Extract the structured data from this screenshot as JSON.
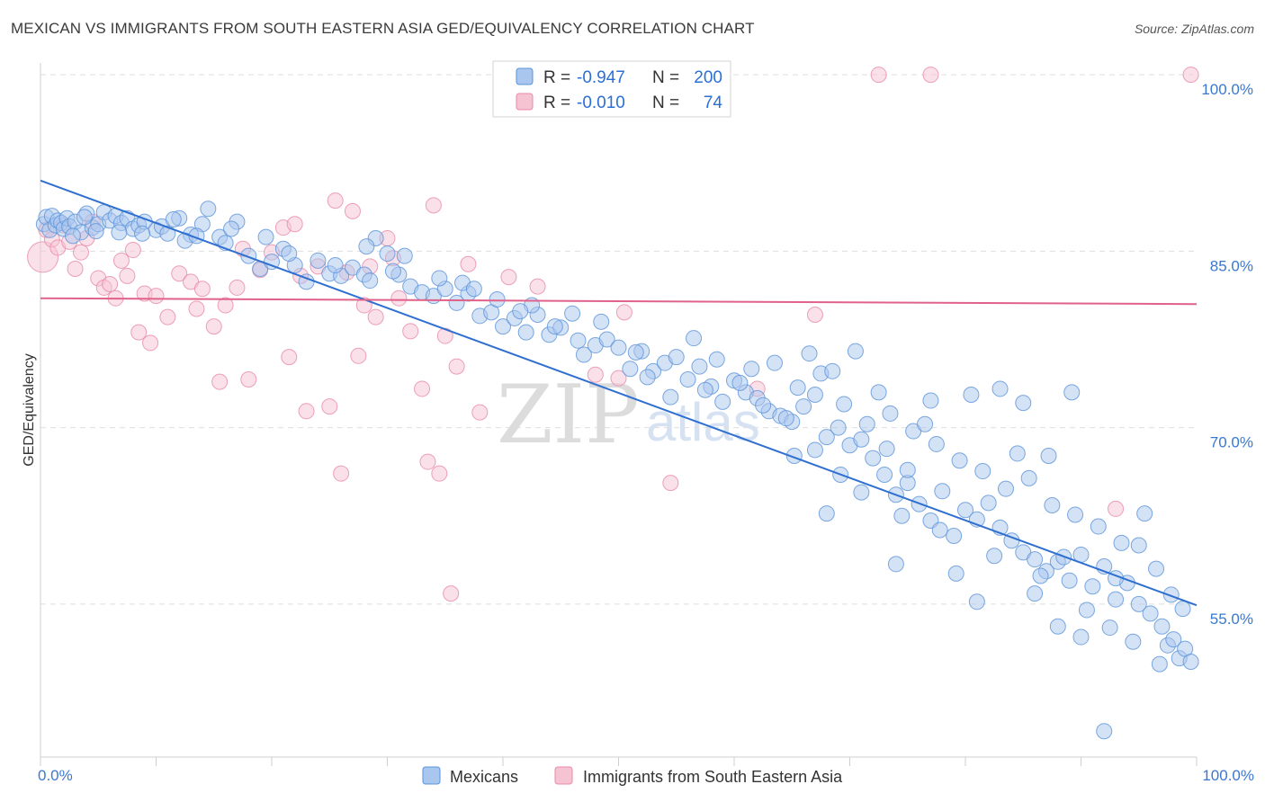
{
  "title": "MEXICAN VS IMMIGRANTS FROM SOUTH EASTERN ASIA GED/EQUIVALENCY CORRELATION CHART",
  "source": "Source: ZipAtlas.com",
  "watermark": {
    "zip": "ZIP",
    "atlas": "atlas"
  },
  "colors": {
    "blue": "#5b93d9",
    "blue_fill": "#a9c6ee",
    "blue_line": "#2f6fd0",
    "pink": "#e88aa8",
    "pink_fill": "#f6c3d3",
    "pink_line": "#e0628a",
    "tick_text": "#3a78d0",
    "grid": "#dedede"
  },
  "legend": {
    "rows": [
      {
        "r_label": "R =",
        "r_value": "-0.947",
        "n_label": "N =",
        "n_value": "200"
      },
      {
        "r_label": "R =",
        "r_value": "-0.010",
        "n_label": "N =",
        "n_value": "74"
      }
    ]
  },
  "chart_data": {
    "type": "scatter",
    "xlabel": "",
    "ylabel": "GED/Equivalency",
    "xlim": [
      0,
      100
    ],
    "ylim": [
      42,
      101
    ],
    "x_tick_labels": [
      "0.0%",
      "100.0%"
    ],
    "y_ticks": [
      {
        "value": 100,
        "label": "100.0%"
      },
      {
        "value": 85,
        "label": "85.0%"
      },
      {
        "value": 70,
        "label": "70.0%"
      },
      {
        "value": 55,
        "label": "55.0%"
      }
    ],
    "grid": "horizontal dashed",
    "legend_position": "top-center",
    "series": [
      {
        "name": "Mexicans",
        "trend": {
          "x": [
            0,
            100
          ],
          "y": [
            91.0,
            54.9
          ]
        },
        "points": [
          [
            0.3,
            87.3
          ],
          [
            0.5,
            87.9
          ],
          [
            0.8,
            86.8
          ],
          [
            1.0,
            88.0
          ],
          [
            1.3,
            87.2
          ],
          [
            1.5,
            87.6
          ],
          [
            1.8,
            87.4
          ],
          [
            2.0,
            86.9
          ],
          [
            2.3,
            87.8
          ],
          [
            2.5,
            87.1
          ],
          [
            3.0,
            87.5
          ],
          [
            3.5,
            86.6
          ],
          [
            4.0,
            88.2
          ],
          [
            4.5,
            87.0
          ],
          [
            5.0,
            87.3
          ],
          [
            5.5,
            88.3
          ],
          [
            6.0,
            87.6
          ],
          [
            6.5,
            88.0
          ],
          [
            7.0,
            87.4
          ],
          [
            7.5,
            87.8
          ],
          [
            8.0,
            86.9
          ],
          [
            8.5,
            87.2
          ],
          [
            9.0,
            87.5
          ],
          [
            10.0,
            86.8
          ],
          [
            10.5,
            87.1
          ],
          [
            11.0,
            86.5
          ],
          [
            12.0,
            87.8
          ],
          [
            13.0,
            86.4
          ],
          [
            14.0,
            87.3
          ],
          [
            15.5,
            86.2
          ],
          [
            17.0,
            87.5
          ],
          [
            14.5,
            88.6
          ],
          [
            12.5,
            85.9
          ],
          [
            16.0,
            85.7
          ],
          [
            18.0,
            84.6
          ],
          [
            19.0,
            83.5
          ],
          [
            20.0,
            84.1
          ],
          [
            21.0,
            85.2
          ],
          [
            22.0,
            83.8
          ],
          [
            23.0,
            82.4
          ],
          [
            24.0,
            84.2
          ],
          [
            25.0,
            83.1
          ],
          [
            26.0,
            82.9
          ],
          [
            27.0,
            83.6
          ],
          [
            28.0,
            83.0
          ],
          [
            28.5,
            82.5
          ],
          [
            29.0,
            86.1
          ],
          [
            30.0,
            84.8
          ],
          [
            31.0,
            83.0
          ],
          [
            32.0,
            82.0
          ],
          [
            33.0,
            81.5
          ],
          [
            34.0,
            81.2
          ],
          [
            35.0,
            81.8
          ],
          [
            36.0,
            80.6
          ],
          [
            37.0,
            81.4
          ],
          [
            38.0,
            79.5
          ],
          [
            39.0,
            79.8
          ],
          [
            40.0,
            78.6
          ],
          [
            41.0,
            79.3
          ],
          [
            42.0,
            78.1
          ],
          [
            43.0,
            79.6
          ],
          [
            44.0,
            77.9
          ],
          [
            45.0,
            78.5
          ],
          [
            46.0,
            79.7
          ],
          [
            47.0,
            76.2
          ],
          [
            48.0,
            77.0
          ],
          [
            49.0,
            77.5
          ],
          [
            50.0,
            76.8
          ],
          [
            51.0,
            75.0
          ],
          [
            52.0,
            76.5
          ],
          [
            53.0,
            74.8
          ],
          [
            54.0,
            75.5
          ],
          [
            55.0,
            76.0
          ],
          [
            56.0,
            74.1
          ],
          [
            57.0,
            75.2
          ],
          [
            58.0,
            73.5
          ],
          [
            59.0,
            72.2
          ],
          [
            60.0,
            74.0
          ],
          [
            61.0,
            73.0
          ],
          [
            62.0,
            72.5
          ],
          [
            63.0,
            71.4
          ],
          [
            64.0,
            71.0
          ],
          [
            65.0,
            70.5
          ],
          [
            66.0,
            71.8
          ],
          [
            67.0,
            72.8
          ],
          [
            68.0,
            69.2
          ],
          [
            69.0,
            70.0
          ],
          [
            70.0,
            68.5
          ],
          [
            71.0,
            69.0
          ],
          [
            72.0,
            67.4
          ],
          [
            73.0,
            66.0
          ],
          [
            74.0,
            64.3
          ],
          [
            75.0,
            65.3
          ],
          [
            76.0,
            63.5
          ],
          [
            77.0,
            62.1
          ],
          [
            78.0,
            64.6
          ],
          [
            79.0,
            60.8
          ],
          [
            80.0,
            63.0
          ],
          [
            81.0,
            62.2
          ],
          [
            82.0,
            63.6
          ],
          [
            83.0,
            61.5
          ],
          [
            84.0,
            60.4
          ],
          [
            85.0,
            59.4
          ],
          [
            86.0,
            58.8
          ],
          [
            87.0,
            57.8
          ],
          [
            88.0,
            58.6
          ],
          [
            89.0,
            57.0
          ],
          [
            90.0,
            59.2
          ],
          [
            91.0,
            56.5
          ],
          [
            92.0,
            58.2
          ],
          [
            93.0,
            55.4
          ],
          [
            94.0,
            56.8
          ],
          [
            95.0,
            55.0
          ],
          [
            96.0,
            54.2
          ],
          [
            97.0,
            53.1
          ],
          [
            97.5,
            51.5
          ],
          [
            98.0,
            52.0
          ],
          [
            98.5,
            50.4
          ],
          [
            99.0,
            51.2
          ],
          [
            99.5,
            50.1
          ],
          [
            63.5,
            75.5
          ],
          [
            66.5,
            76.3
          ],
          [
            56.5,
            77.6
          ],
          [
            48.5,
            79.0
          ],
          [
            42.5,
            80.4
          ],
          [
            36.5,
            82.3
          ],
          [
            30.5,
            83.3
          ],
          [
            25.5,
            83.8
          ],
          [
            21.5,
            84.8
          ],
          [
            8.8,
            86.5
          ],
          [
            52.5,
            74.3
          ],
          [
            58.5,
            75.8
          ],
          [
            61.5,
            75.0
          ],
          [
            65.5,
            73.4
          ],
          [
            67.5,
            74.6
          ],
          [
            69.5,
            72.0
          ],
          [
            71.5,
            70.3
          ],
          [
            73.5,
            71.2
          ],
          [
            75.5,
            69.7
          ],
          [
            77.5,
            68.6
          ],
          [
            79.5,
            67.2
          ],
          [
            81.5,
            66.3
          ],
          [
            83.5,
            64.8
          ],
          [
            85.5,
            65.7
          ],
          [
            87.5,
            63.4
          ],
          [
            89.5,
            62.6
          ],
          [
            91.5,
            61.6
          ],
          [
            93.5,
            60.2
          ],
          [
            95.5,
            62.7
          ],
          [
            96.5,
            58.0
          ],
          [
            97.8,
            55.8
          ],
          [
            98.8,
            54.6
          ],
          [
            84.5,
            67.8
          ],
          [
            80.5,
            72.8
          ],
          [
            76.5,
            70.3
          ],
          [
            72.5,
            73.0
          ],
          [
            70.5,
            76.5
          ],
          [
            68.5,
            74.8
          ],
          [
            64.5,
            70.8
          ],
          [
            62.5,
            71.9
          ],
          [
            60.5,
            73.8
          ],
          [
            57.5,
            73.2
          ],
          [
            54.5,
            72.6
          ],
          [
            51.5,
            76.4
          ],
          [
            46.5,
            77.4
          ],
          [
            44.5,
            78.6
          ],
          [
            41.5,
            79.9
          ],
          [
            39.5,
            80.9
          ],
          [
            37.5,
            81.8
          ],
          [
            34.5,
            82.7
          ],
          [
            31.5,
            84.6
          ],
          [
            28.2,
            85.4
          ],
          [
            19.5,
            86.2
          ],
          [
            16.5,
            86.9
          ],
          [
            13.5,
            86.3
          ],
          [
            11.5,
            87.7
          ],
          [
            6.8,
            86.6
          ],
          [
            4.8,
            86.7
          ],
          [
            3.8,
            87.9
          ],
          [
            2.8,
            86.3
          ],
          [
            74.5,
            62.5
          ],
          [
            77.8,
            61.3
          ],
          [
            82.5,
            59.1
          ],
          [
            86.5,
            57.4
          ],
          [
            88.5,
            59.0
          ],
          [
            90.5,
            54.5
          ],
          [
            92.5,
            53.0
          ],
          [
            94.5,
            51.8
          ],
          [
            96.8,
            49.9
          ],
          [
            92.0,
            44.2
          ],
          [
            87.2,
            67.6
          ],
          [
            89.2,
            73.0
          ],
          [
            83.0,
            73.3
          ],
          [
            85.0,
            72.1
          ],
          [
            77.0,
            72.3
          ],
          [
            73.2,
            68.2
          ],
          [
            75.0,
            66.4
          ],
          [
            69.2,
            66.0
          ],
          [
            67.0,
            68.1
          ],
          [
            65.2,
            67.6
          ],
          [
            71.0,
            64.5
          ],
          [
            68.0,
            62.7
          ],
          [
            74.0,
            58.4
          ],
          [
            79.2,
            57.6
          ],
          [
            81.0,
            55.2
          ],
          [
            86.0,
            55.9
          ],
          [
            88.0,
            53.1
          ],
          [
            90.0,
            52.2
          ],
          [
            93.0,
            57.2
          ],
          [
            95.0,
            60.0
          ]
        ]
      },
      {
        "name": "Immigrants from South Eastern Asia",
        "trend": {
          "x": [
            0,
            100
          ],
          "y": [
            81.0,
            80.5
          ]
        },
        "points": [
          [
            0.2,
            84.5
          ],
          [
            0.5,
            86.8
          ],
          [
            1.0,
            86.0
          ],
          [
            1.5,
            85.3
          ],
          [
            2.0,
            87.2
          ],
          [
            2.5,
            85.8
          ],
          [
            3.0,
            83.5
          ],
          [
            3.5,
            84.9
          ],
          [
            4.0,
            86.1
          ],
          [
            4.5,
            87.5
          ],
          [
            5.0,
            82.7
          ],
          [
            5.5,
            81.9
          ],
          [
            6.0,
            82.2
          ],
          [
            6.5,
            81.0
          ],
          [
            7.0,
            84.2
          ],
          [
            7.5,
            82.9
          ],
          [
            8.0,
            85.1
          ],
          [
            8.5,
            78.1
          ],
          [
            9.0,
            81.4
          ],
          [
            9.5,
            77.2
          ],
          [
            10.0,
            81.2
          ],
          [
            11.0,
            79.4
          ],
          [
            12.0,
            83.1
          ],
          [
            13.0,
            82.4
          ],
          [
            13.5,
            80.1
          ],
          [
            14.0,
            81.8
          ],
          [
            15.0,
            78.6
          ],
          [
            15.5,
            73.9
          ],
          [
            16.0,
            80.4
          ],
          [
            17.0,
            81.9
          ],
          [
            17.5,
            85.2
          ],
          [
            18.0,
            74.1
          ],
          [
            19.0,
            83.4
          ],
          [
            20.0,
            84.9
          ],
          [
            21.0,
            87.0
          ],
          [
            21.5,
            76.0
          ],
          [
            22.0,
            87.3
          ],
          [
            22.5,
            82.9
          ],
          [
            23.0,
            71.4
          ],
          [
            24.0,
            83.7
          ],
          [
            25.0,
            71.8
          ],
          [
            25.5,
            89.3
          ],
          [
            26.0,
            66.1
          ],
          [
            26.5,
            83.2
          ],
          [
            27.0,
            88.4
          ],
          [
            27.5,
            76.1
          ],
          [
            28.0,
            80.4
          ],
          [
            28.5,
            83.7
          ],
          [
            29.0,
            79.4
          ],
          [
            30.0,
            86.1
          ],
          [
            30.5,
            84.4
          ],
          [
            31.0,
            81.0
          ],
          [
            32.0,
            78.2
          ],
          [
            33.0,
            73.3
          ],
          [
            33.5,
            67.1
          ],
          [
            34.0,
            88.9
          ],
          [
            34.5,
            66.1
          ],
          [
            35.0,
            77.8
          ],
          [
            35.5,
            55.9
          ],
          [
            36.0,
            75.2
          ],
          [
            37.0,
            83.9
          ],
          [
            38.0,
            71.3
          ],
          [
            40.5,
            82.8
          ],
          [
            43.0,
            82.0
          ],
          [
            48.0,
            74.5
          ],
          [
            50.0,
            74.2
          ],
          [
            54.5,
            65.3
          ],
          [
            50.5,
            79.8
          ],
          [
            62.0,
            73.3
          ],
          [
            67.0,
            79.6
          ],
          [
            72.5,
            100.0
          ],
          [
            77.0,
            100.0
          ],
          [
            93.0,
            63.1
          ],
          [
            99.5,
            100.0
          ]
        ]
      }
    ]
  },
  "bottom_legend": {
    "items": [
      {
        "label": "Mexicans"
      },
      {
        "label": "Immigrants from South Eastern Asia"
      }
    ]
  }
}
